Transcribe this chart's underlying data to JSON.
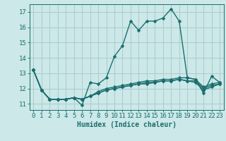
{
  "title": "",
  "xlabel": "Humidex (Indice chaleur)",
  "background_color": "#cce8e8",
  "grid_color": "#aacccc",
  "line_color": "#1a6e6e",
  "x_values": [
    0,
    1,
    2,
    3,
    4,
    5,
    6,
    7,
    8,
    9,
    10,
    11,
    12,
    13,
    14,
    15,
    16,
    17,
    18,
    19,
    20,
    21,
    22,
    23
  ],
  "series": [
    [
      13.2,
      11.9,
      11.3,
      11.3,
      11.3,
      11.4,
      10.9,
      12.4,
      12.3,
      12.7,
      14.1,
      14.8,
      16.4,
      15.8,
      16.4,
      16.4,
      16.6,
      17.2,
      16.4,
      12.7,
      12.6,
      11.7,
      12.8,
      12.4
    ],
    [
      13.2,
      11.9,
      11.3,
      11.3,
      11.3,
      11.4,
      11.3,
      11.5,
      11.8,
      12.0,
      12.1,
      12.2,
      12.3,
      12.4,
      12.5,
      12.5,
      12.6,
      12.6,
      12.7,
      12.7,
      12.6,
      12.1,
      12.3,
      12.4
    ],
    [
      13.2,
      11.9,
      11.3,
      11.3,
      11.3,
      11.4,
      11.3,
      11.5,
      11.7,
      11.9,
      12.0,
      12.1,
      12.2,
      12.3,
      12.4,
      12.4,
      12.5,
      12.5,
      12.6,
      12.5,
      12.5,
      12.0,
      12.2,
      12.3
    ],
    [
      13.2,
      11.9,
      11.3,
      11.3,
      11.3,
      11.4,
      11.3,
      11.5,
      11.7,
      11.9,
      12.0,
      12.1,
      12.2,
      12.3,
      12.3,
      12.4,
      12.5,
      12.5,
      12.6,
      12.5,
      12.4,
      11.9,
      12.1,
      12.3
    ]
  ],
  "ylim": [
    10.6,
    17.5
  ],
  "yticks": [
    11,
    12,
    13,
    14,
    15,
    16,
    17
  ],
  "xticks": [
    0,
    1,
    2,
    3,
    4,
    5,
    6,
    7,
    8,
    9,
    10,
    11,
    12,
    13,
    14,
    15,
    16,
    17,
    18,
    19,
    20,
    21,
    22,
    23
  ],
  "markersize": 2.5,
  "linewidth": 1.0,
  "font_size": 6.5
}
